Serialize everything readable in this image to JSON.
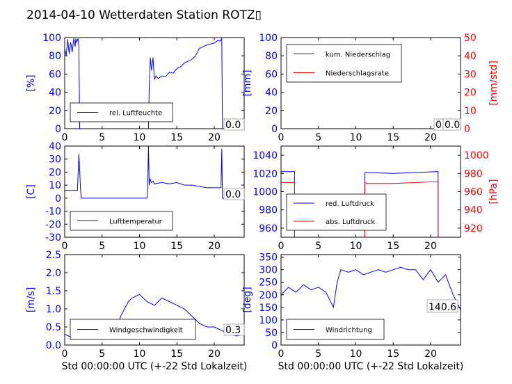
{
  "title": "2014-04-10 Wetterdaten Station ROTZ",
  "title_glyph": "▯",
  "colors": {
    "blue": "#0000ff",
    "red": "#ff0000",
    "black": "#000000"
  },
  "chart_data": [
    {
      "id": "humidity",
      "type": "line",
      "ylabel": "[%]",
      "xlim": [
        0,
        24
      ],
      "ylim": [
        0,
        100
      ],
      "xticks": [
        0,
        5,
        10,
        15,
        20
      ],
      "yticks": [
        0,
        20,
        40,
        60,
        80,
        100
      ],
      "legend_position": "lower-left",
      "value_box": "0.0",
      "series": [
        {
          "name": "rel. Luftfeuchte",
          "color": "#0000ff",
          "x": [
            0,
            0.2,
            0.4,
            0.6,
            0.8,
            1.0,
            1.2,
            1.4,
            1.5,
            1.6,
            1.8,
            1.9,
            2.0,
            5,
            11.2,
            11.3,
            11.45,
            11.6,
            11.8,
            12.0,
            12.2,
            12.5,
            13,
            13.5,
            14,
            14.5,
            15,
            15.5,
            16,
            16.5,
            17,
            17.5,
            18,
            18.5,
            19,
            19.5,
            20,
            20.5,
            20.8,
            21.0,
            21.1,
            24
          ],
          "y": [
            88,
            80,
            98,
            82,
            95,
            84,
            99,
            90,
            99,
            95,
            99,
            90,
            0,
            0,
            0,
            45,
            78,
            64,
            78,
            54,
            58,
            55,
            58,
            57,
            62,
            61,
            66,
            68,
            72,
            74,
            76,
            80,
            88,
            90,
            92,
            93,
            94,
            97,
            96,
            99,
            0,
            0
          ]
        }
      ]
    },
    {
      "id": "precip",
      "type": "line",
      "ylabel": "[mm]",
      "y2label": "[mm/std]",
      "xlim": [
        0,
        24
      ],
      "ylim": [
        0,
        100
      ],
      "y2lim": [
        0,
        50
      ],
      "xticks": [
        0,
        5,
        10,
        15,
        20
      ],
      "yticks": [
        0,
        20,
        40,
        60,
        80,
        100
      ],
      "y2ticks": [
        0,
        10,
        20,
        30,
        40,
        50
      ],
      "legend_position": "upper-left",
      "value_box": "0.0",
      "value_box2": "0.0",
      "series": [
        {
          "name": "kum. Niederschlag",
          "color": "#0000ff",
          "axis": "left",
          "x": [
            0,
            24
          ],
          "y": [
            0,
            0
          ]
        },
        {
          "name": "Niederschlagsrate",
          "color": "#ff0000",
          "axis": "right",
          "x": [
            0,
            24
          ],
          "y": [
            0,
            0
          ]
        }
      ]
    },
    {
      "id": "temperature",
      "type": "line",
      "ylabel": "[C]",
      "xlim": [
        0,
        24
      ],
      "ylim": [
        -30,
        40
      ],
      "xticks": [
        0,
        5,
        10,
        15,
        20
      ],
      "yticks": [
        -30,
        -20,
        -10,
        0,
        10,
        20,
        30,
        40
      ],
      "legend_position": "lower-left",
      "value_box": "0.0",
      "series": [
        {
          "name": "Lufttemperatur",
          "color": "#0000ff",
          "x": [
            0,
            1.7,
            1.9,
            2.0,
            2.1,
            2.2,
            5,
            11.0,
            11.1,
            11.2,
            11.3,
            11.4,
            11.6,
            11.8,
            12.0,
            13,
            14,
            15,
            16,
            17,
            18,
            19,
            20,
            20.9,
            21.0,
            21.1,
            24
          ],
          "y": [
            6,
            6,
            34,
            22,
            8,
            0,
            0,
            0,
            8,
            40,
            10,
            15,
            12,
            13,
            11,
            12,
            11,
            12,
            10,
            10,
            9,
            8,
            8,
            8,
            38,
            0,
            0
          ]
        }
      ]
    },
    {
      "id": "pressure",
      "type": "line",
      "y2label": "[hPa]",
      "xlim": [
        0,
        24
      ],
      "ylim": [
        950,
        1050
      ],
      "y2lim": [
        910,
        1010
      ],
      "xticks": [
        0,
        5,
        10,
        15,
        20
      ],
      "yticks": [
        960,
        980,
        1000,
        1020,
        1040
      ],
      "y2ticks": [
        920,
        940,
        960,
        980,
        1000
      ],
      "legend_position": "lower-left",
      "series": [
        {
          "name": "red. Luftdruck",
          "color": "#0000ff",
          "axis": "left",
          "x": [
            0,
            1.8,
            1.8,
            11.2,
            11.2,
            11.5,
            15,
            18,
            21.0,
            21.0
          ],
          "y": [
            1022,
            1022,
            945,
            945,
            1021,
            1021,
            1020,
            1021,
            1022,
            945
          ]
        },
        {
          "name": "abs. Luftdruck",
          "color": "#ff0000",
          "axis": "left",
          "x": [
            0,
            1.8,
            1.8,
            11.2,
            11.2,
            11.5,
            15,
            18,
            21.0,
            21.0
          ],
          "y": [
            1010,
            1010,
            945,
            945,
            1010,
            1009,
            1009,
            1010,
            1011,
            945
          ]
        }
      ]
    },
    {
      "id": "windspeed",
      "type": "line",
      "ylabel": "[m/s]",
      "xlabel": "Std 00:00:00 UTC (+-22 Std Lokalzeit)",
      "xlim": [
        0,
        24
      ],
      "ylim": [
        0,
        2.5
      ],
      "xticks": [
        0,
        5,
        10,
        15,
        20
      ],
      "yticks": [
        0.0,
        0.5,
        1.0,
        1.5,
        2.0,
        2.5
      ],
      "legend_position": "lower-center",
      "value_box": "0.3",
      "series": [
        {
          "name": "Windgeschwindigkeit",
          "color": "#0000ff",
          "x": [
            0,
            1,
            2,
            3,
            4,
            5,
            6,
            7,
            7.5,
            8,
            8.5,
            9,
            10,
            11,
            12,
            13,
            14,
            15,
            16,
            17,
            18,
            19,
            20,
            21,
            22,
            23,
            24
          ],
          "y": [
            0.3,
            0.2,
            0.2,
            0.25,
            0.3,
            0.35,
            0.4,
            0.5,
            0.8,
            1.0,
            1.2,
            1.3,
            1.4,
            1.2,
            1.1,
            1.3,
            1.2,
            1.1,
            1.0,
            0.8,
            0.6,
            0.5,
            0.5,
            0.4,
            0.3,
            0.25,
            0.3
          ]
        }
      ]
    },
    {
      "id": "winddir",
      "type": "line",
      "ylabel": "[deg]",
      "xlabel": "Std 00:00:00 UTC (+-22 Std Lokalzeit)",
      "xlim": [
        0,
        24
      ],
      "ylim": [
        0,
        360
      ],
      "xticks": [
        0,
        5,
        10,
        15,
        20
      ],
      "yticks": [
        0,
        50,
        100,
        150,
        200,
        250,
        300,
        350
      ],
      "legend_position": "lower-left",
      "value_box": "140.6",
      "series": [
        {
          "name": "Windrichtung",
          "color": "#0000ff",
          "x": [
            0,
            1,
            2,
            3,
            4,
            5,
            6,
            7,
            7.5,
            8,
            9,
            10,
            11,
            12,
            13,
            14,
            15,
            16,
            17,
            18,
            19,
            20,
            21,
            22,
            23,
            24
          ],
          "y": [
            200,
            230,
            210,
            240,
            220,
            230,
            210,
            150,
            250,
            300,
            290,
            300,
            280,
            290,
            300,
            290,
            300,
            310,
            300,
            300,
            260,
            300,
            250,
            280,
            200,
            140
          ]
        }
      ]
    }
  ]
}
